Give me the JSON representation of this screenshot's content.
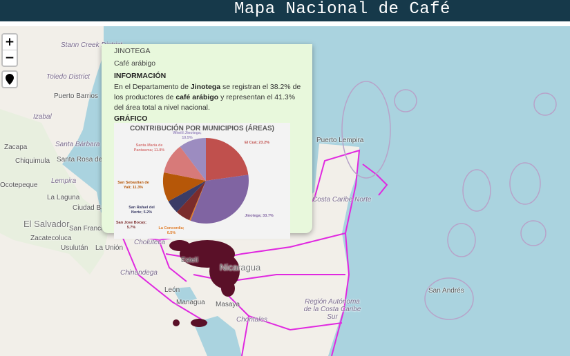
{
  "header": {
    "title": "Mapa Nacional de Café"
  },
  "controls": {
    "zoom_in": "+",
    "zoom_out": "−"
  },
  "popup": {
    "department": "JINOTEGA",
    "product": "Café arábigo",
    "info_heading": "INFORMACIÓN",
    "info_parts": [
      "En el Departamento de ",
      "Jinotega",
      " se registran el 38.2% de los productores de ",
      "café arábigo",
      " y representan el 41.3% del área total a nivel nacional."
    ],
    "chart_heading": "GRÁFICO",
    "chart_data": {
      "type": "pie",
      "title": "CONTRIBUCIÓN POR MUNICIPIOS (ÁREAS)",
      "values": [
        23.2,
        33.7,
        0.5,
        5.7,
        5.2,
        11.3,
        11.8,
        10.5
      ],
      "value_labels": [
        "El Cuá; 23.2%",
        "Jinotega; 33.7%",
        "La Concordia; 0.5%",
        "San Jose Bocay; 5.7%",
        "San Rafael del Norte; 5.2%",
        "San Sebastian de Yalí; 11.3%",
        "Santa María de Pantasma; 11.8%",
        "Wiwilí Jinotega; 10.5%"
      ],
      "colors": [
        "#c0504d",
        "#8064a2",
        "#e07b26",
        "#7b2c2c",
        "#3b3c66",
        "#b65708",
        "#d77a79",
        "#9c8cc0"
      ]
    }
  },
  "map_labels": [
    "Stann Creek District",
    "Toledo District",
    "Puerto Barrios",
    "Izabal",
    "Zacapa",
    "Santa Bárbara",
    "Chiquimula",
    "Santa Rosa de Copán",
    "Lempira",
    "Ocotepeque",
    "La Laguna",
    "Ciudad Barrios",
    "El Salvador",
    "San Francisco Gotera",
    "Zacatecoluca",
    "Usulután",
    "La Unión",
    "Choluteca",
    "Chinandega",
    "Estelí",
    "Nicaragua",
    "León",
    "Managua",
    "Masaya",
    "Chontales",
    "Puerto Lempira",
    "Costa Caribe Norte",
    "Región Autónoma de la Costa Caribe Sur",
    "San Andrés"
  ]
}
